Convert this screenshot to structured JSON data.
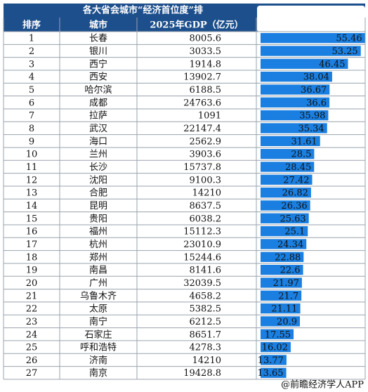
{
  "header": {
    "title": "各大省会城市“经济首位度”排"
  },
  "table": {
    "columns": [
      "排序",
      "城市",
      "2025年GDP（亿元）"
    ],
    "rows": [
      [
        1,
        "长春",
        8005.6,
        55.46
      ],
      [
        2,
        "银川",
        3033.5,
        53.25
      ],
      [
        3,
        "西宁",
        1914.8,
        46.45
      ],
      [
        4,
        "西安",
        13902.7,
        38.04
      ],
      [
        5,
        "哈尔滨",
        6188.5,
        36.67
      ],
      [
        6,
        "成都",
        24763.6,
        36.6
      ],
      [
        7,
        "拉萨",
        1091,
        35.98
      ],
      [
        8,
        "武汉",
        22147.4,
        35.34
      ],
      [
        9,
        "海口",
        2562.9,
        31.61
      ],
      [
        10,
        "兰州",
        3903.6,
        28.5
      ],
      [
        11,
        "长沙",
        15737.8,
        28.45
      ],
      [
        12,
        "沈阳",
        9100.3,
        27.42
      ],
      [
        13,
        "合肥",
        14210,
        26.82
      ],
      [
        14,
        "昆明",
        8637.5,
        26.36
      ],
      [
        15,
        "贵阳",
        6038.2,
        25.63
      ],
      [
        16,
        "福州",
        15112.3,
        25.1
      ],
      [
        17,
        "杭州",
        23010.9,
        24.34
      ],
      [
        18,
        "郑州",
        15244.6,
        22.88
      ],
      [
        19,
        "南昌",
        8141.6,
        22.6
      ],
      [
        20,
        "广州",
        32039.5,
        21.97
      ],
      [
        21,
        "乌鲁木齐",
        4658.2,
        21.7
      ],
      [
        22,
        "太原",
        5382.5,
        21.11
      ],
      [
        23,
        "南宁",
        6212.5,
        20.9
      ],
      [
        24,
        "石家庄",
        8651.7,
        17.55
      ],
      [
        25,
        "呼和浩特",
        4278.3,
        16.02
      ],
      [
        26,
        "济南",
        14210,
        13.77
      ],
      [
        27,
        "南京",
        19428.8,
        13.65
      ]
    ]
  },
  "footer": {
    "source": "@前瞻经济学人APP"
  }
}
